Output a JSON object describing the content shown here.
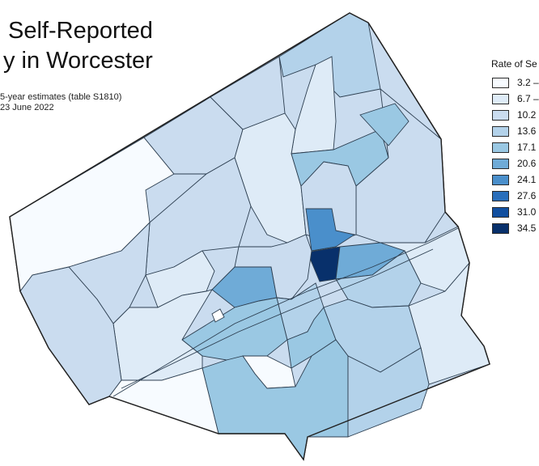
{
  "title": {
    "line1": "Self-Reported",
    "line2": "y in Worcester"
  },
  "subtitle": {
    "line1": "5-year estimates (table S1810)",
    "line2": "23 June 2022"
  },
  "legend": {
    "title": "Rate of Se",
    "classes": [
      {
        "label": "3.2 –",
        "color": "#f7fbff"
      },
      {
        "label": "6.7 –",
        "color": "#deebf7"
      },
      {
        "label": "10.2",
        "color": "#cadcef"
      },
      {
        "label": "13.6",
        "color": "#b3d2ea"
      },
      {
        "label": "17.1",
        "color": "#9ac8e3"
      },
      {
        "label": "20.6",
        "color": "#6fabd7"
      },
      {
        "label": "24.1",
        "color": "#4a8fcb"
      },
      {
        "label": "27.6",
        "color": "#2a6fbb"
      },
      {
        "label": "31.0",
        "color": "#114f9f"
      },
      {
        "label": "34.5",
        "color": "#08306b"
      }
    ]
  },
  "map_colors": {
    "border": "#222222",
    "tract_border": "#2c3e50"
  }
}
